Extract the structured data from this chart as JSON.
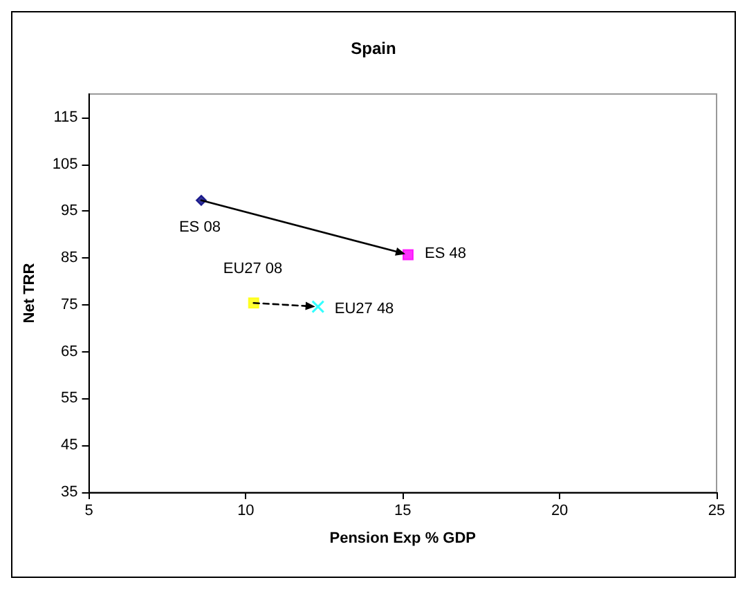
{
  "chart_data": {
    "type": "scatter",
    "title": "Spain",
    "xlabel": "Pension Exp % GDP",
    "ylabel": "Net TRR",
    "xlim": [
      5,
      25
    ],
    "xticks": [
      5,
      10,
      15,
      20,
      25
    ],
    "ylim": [
      35,
      120
    ],
    "yticks": [
      35,
      45,
      55,
      65,
      75,
      85,
      95,
      105,
      115
    ],
    "grid": false,
    "series": [
      {
        "color": "#000080",
        "marker": "diamond",
        "x": [
          8.58
        ],
        "values": [
          97.3
        ]
      },
      {
        "color": "#ff00ff",
        "marker": "square",
        "line_style": "solid",
        "x": [
          15.17
        ],
        "values": [
          85.7
        ]
      },
      {
        "color": "#ffff00",
        "marker": "square",
        "x": [
          10.25
        ],
        "values": [
          75.4
        ]
      },
      {
        "color": "#00ffff",
        "marker": "cross",
        "line_style": "dashed",
        "x": [
          12.3
        ],
        "values": [
          74.6
        ]
      }
    ],
    "annotations": [
      {
        "text": "ES 08",
        "x": 8.58,
        "y": 97.3
      },
      {
        "text": "ES 48",
        "x": 15.17,
        "y": 85.7
      },
      {
        "text": "EU27 08",
        "x": 10.25,
        "y": 75.4
      },
      {
        "text": "EU27 48",
        "x": 12.3,
        "y": 74.6
      }
    ]
  }
}
